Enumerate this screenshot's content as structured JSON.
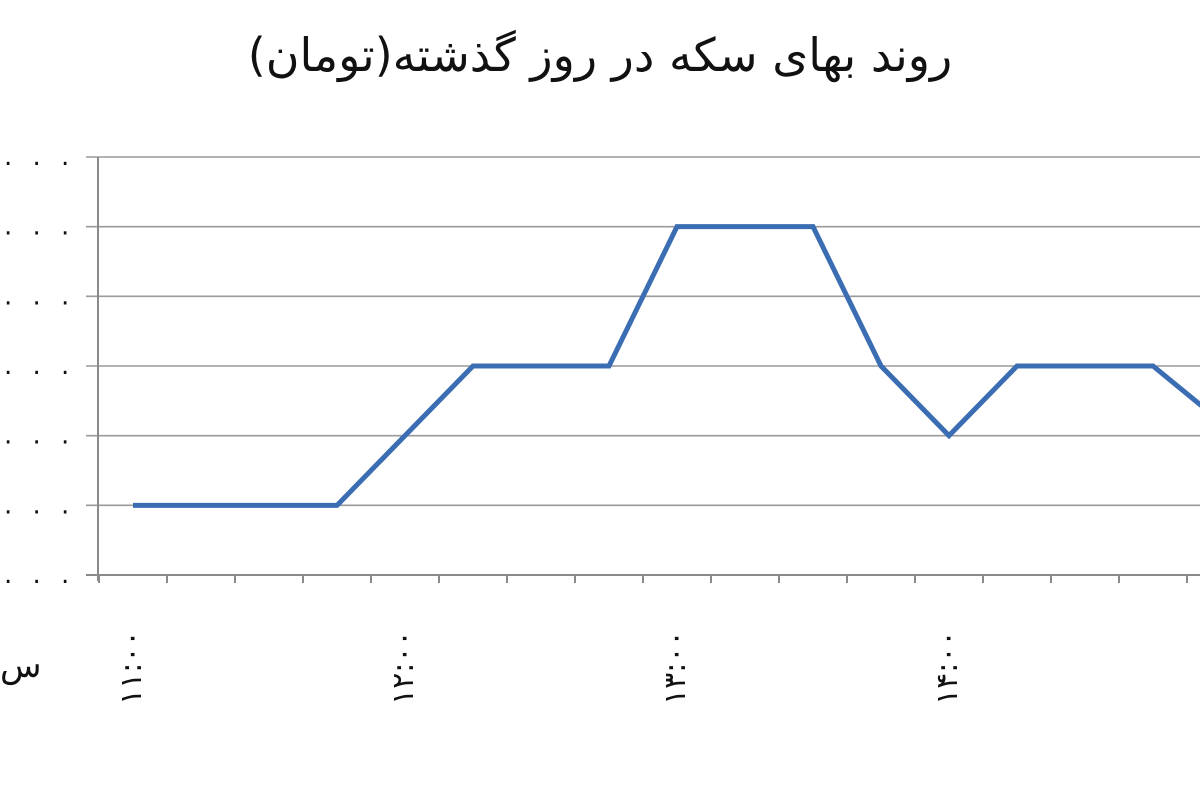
{
  "chart_data": {
    "type": "line",
    "title": "روند بهای سکه در روز گذشته(تومان)",
    "xlabel": "",
    "ylabel": "",
    "x": [
      "۱۱:۰۰",
      "",
      "",
      "",
      "۱۲:۰۰",
      "",
      "",
      "",
      "۱۳:۰۰",
      "",
      "",
      "",
      "۱۴:۰۰",
      "",
      "",
      "",
      ""
    ],
    "x_tick_labels": [
      "۱۱:۰۰",
      "۱۲:۰۰",
      "۱۳:۰۰",
      "۱۴:۰۰"
    ],
    "y_tick_labels": [
      ". . .",
      ". . .",
      ". . .",
      ". . .",
      ". . .",
      ". . .",
      ". . ."
    ],
    "series": [
      {
        "values": [
          1,
          1,
          1,
          1,
          2,
          3,
          3,
          3,
          5,
          5,
          5,
          3,
          2,
          3,
          3,
          3,
          2.2
        ]
      }
    ],
    "ylim": [
      0,
      6
    ],
    "grid": true,
    "line_color": "#3b6db3",
    "cut_off_left_label": "س"
  }
}
